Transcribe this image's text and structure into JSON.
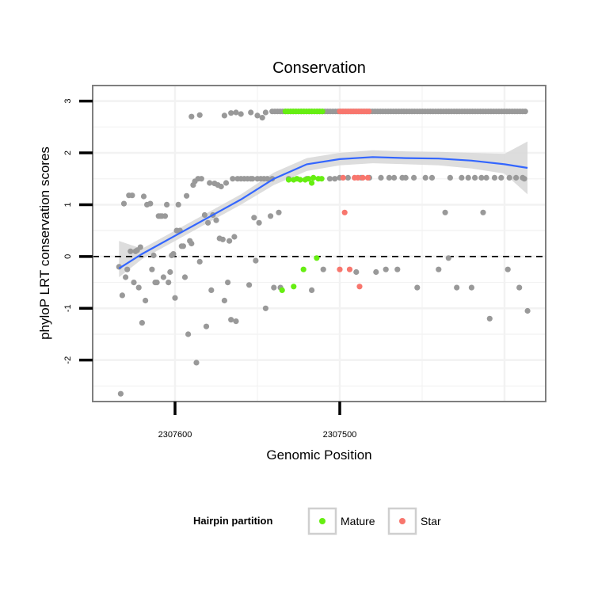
{
  "chart_data": {
    "type": "scatter",
    "title": "Conservation",
    "xlabel": "Genomic Position",
    "ylabel": "phyloP LRT conservation scores",
    "x_axis_reversed": true,
    "xlim": [
      2307650,
      2307375
    ],
    "ylim": [
      -2.8,
      3.3
    ],
    "x_ticks": [
      2307600,
      2307500
    ],
    "x_tick_labels": [
      "2307600",
      "2307500"
    ],
    "y_ticks": [
      -2,
      -1,
      0,
      1,
      2,
      3
    ],
    "y_tick_labels": [
      "-2",
      "-1",
      "0",
      "1",
      "2",
      "3"
    ],
    "grid": true,
    "reference_line": {
      "y": 0,
      "style": "dashed"
    },
    "smooth": {
      "method": "loess",
      "color": "#3366FF",
      "x": [
        2307634,
        2307620,
        2307600,
        2307580,
        2307560,
        2307540,
        2307520,
        2307500,
        2307480,
        2307460,
        2307440,
        2307420,
        2307400,
        2307386
      ],
      "y": [
        -0.23,
        0.05,
        0.4,
        0.75,
        1.1,
        1.5,
        1.78,
        1.88,
        1.92,
        1.9,
        1.89,
        1.85,
        1.78,
        1.71
      ],
      "ci_lower": [
        -0.4,
        -0.05,
        0.3,
        0.65,
        1.0,
        1.38,
        1.65,
        1.76,
        1.8,
        1.78,
        1.76,
        1.7,
        1.6,
        1.2
      ],
      "ci_upper": [
        0.3,
        0.15,
        0.5,
        0.85,
        1.2,
        1.62,
        1.9,
        2.0,
        2.05,
        2.03,
        2.02,
        2.0,
        1.98,
        2.22
      ]
    },
    "series": [
      {
        "name": "",
        "color": "#999999",
        "points": [
          [
            2307634,
            -0.2
          ],
          [
            2307633,
            -2.65
          ],
          [
            2307632,
            -0.75
          ],
          [
            2307631,
            1.02
          ],
          [
            2307630,
            -0.4
          ],
          [
            2307629,
            -0.25
          ],
          [
            2307628,
            1.18
          ],
          [
            2307627,
            0.1
          ],
          [
            2307626,
            1.18
          ],
          [
            2307625,
            -0.5
          ],
          [
            2307624,
            0.1
          ],
          [
            2307623,
            0.12
          ],
          [
            2307622,
            -0.6
          ],
          [
            2307621,
            0.18
          ],
          [
            2307620,
            -1.28
          ],
          [
            2307619,
            1.16
          ],
          [
            2307618,
            -0.85
          ],
          [
            2307617,
            1.0
          ],
          [
            2307615,
            1.02
          ],
          [
            2307614,
            -0.25
          ],
          [
            2307613,
            0.02
          ],
          [
            2307612,
            -0.5
          ],
          [
            2307611,
            -0.5
          ],
          [
            2307610,
            0.78
          ],
          [
            2307609,
            0.78
          ],
          [
            2307608,
            0.78
          ],
          [
            2307607,
            -0.4
          ],
          [
            2307606,
            0.78
          ],
          [
            2307605,
            1.0
          ],
          [
            2307604,
            -0.5
          ],
          [
            2307603,
            -0.3
          ],
          [
            2307602,
            0.02
          ],
          [
            2307601,
            0.05
          ],
          [
            2307600,
            -0.8
          ],
          [
            2307599,
            0.5
          ],
          [
            2307598,
            1.0
          ],
          [
            2307597,
            0.5
          ],
          [
            2307596,
            0.2
          ],
          [
            2307595,
            0.2
          ],
          [
            2307594,
            -0.4
          ],
          [
            2307593,
            1.17
          ],
          [
            2307592,
            -1.5
          ],
          [
            2307591,
            0.3
          ],
          [
            2307590,
            0.25
          ],
          [
            2307589,
            1.38
          ],
          [
            2307588,
            1.45
          ],
          [
            2307587,
            -2.05
          ],
          [
            2307586,
            1.5
          ],
          [
            2307585,
            -0.1
          ],
          [
            2307584,
            1.5
          ],
          [
            2307582,
            0.8
          ],
          [
            2307581,
            -1.35
          ],
          [
            2307580,
            0.65
          ],
          [
            2307579,
            1.42
          ],
          [
            2307578,
            -0.65
          ],
          [
            2307577,
            0.8
          ],
          [
            2307576,
            1.41
          ],
          [
            2307575,
            0.7
          ],
          [
            2307574,
            1.38
          ],
          [
            2307573,
            0.35
          ],
          [
            2307572,
            1.35
          ],
          [
            2307571,
            0.33
          ],
          [
            2307570,
            -0.85
          ],
          [
            2307569,
            1.42
          ],
          [
            2307568,
            -0.5
          ],
          [
            2307567,
            0.3
          ],
          [
            2307566,
            -1.22
          ],
          [
            2307565,
            1.5
          ],
          [
            2307564,
            0.38
          ],
          [
            2307563,
            -1.25
          ],
          [
            2307562,
            1.5
          ],
          [
            2307560,
            1.5
          ],
          [
            2307558,
            1.5
          ],
          [
            2307556,
            1.5
          ],
          [
            2307555,
            -0.55
          ],
          [
            2307554,
            1.5
          ],
          [
            2307553,
            1.5
          ],
          [
            2307552,
            0.75
          ],
          [
            2307551,
            -0.08
          ],
          [
            2307550,
            1.5
          ],
          [
            2307549,
            0.65
          ],
          [
            2307548,
            1.5
          ],
          [
            2307546,
            1.5
          ],
          [
            2307545,
            -1.0
          ],
          [
            2307544,
            1.5
          ],
          [
            2307542,
            0.78
          ],
          [
            2307541,
            1.5
          ],
          [
            2307540,
            -0.6
          ],
          [
            2307537,
            0.85
          ],
          [
            2307536,
            -0.6
          ],
          [
            2307531,
            1.5
          ],
          [
            2307520,
            1.5
          ],
          [
            2307517,
            -0.65
          ],
          [
            2307510,
            -0.25
          ],
          [
            2307506,
            1.5
          ],
          [
            2307503,
            1.5
          ],
          [
            2307500,
            1.52
          ],
          [
            2307495,
            1.52
          ],
          [
            2307490,
            -0.3
          ],
          [
            2307487,
            1.52
          ],
          [
            2307482,
            1.52
          ],
          [
            2307478,
            -0.3
          ],
          [
            2307475,
            1.52
          ],
          [
            2307472,
            -0.25
          ],
          [
            2307470,
            1.52
          ],
          [
            2307467,
            1.52
          ],
          [
            2307465,
            -0.25
          ],
          [
            2307462,
            1.52
          ],
          [
            2307460,
            1.52
          ],
          [
            2307455,
            1.52
          ],
          [
            2307453,
            -0.6
          ],
          [
            2307448,
            1.52
          ],
          [
            2307444,
            1.52
          ],
          [
            2307440,
            -0.25
          ],
          [
            2307436,
            0.85
          ],
          [
            2307434,
            -0.03
          ],
          [
            2307433,
            1.52
          ],
          [
            2307429,
            -0.6
          ],
          [
            2307426,
            1.52
          ],
          [
            2307422,
            1.52
          ],
          [
            2307420,
            -0.6
          ],
          [
            2307418,
            1.52
          ],
          [
            2307414,
            1.52
          ],
          [
            2307413,
            0.85
          ],
          [
            2307411,
            1.52
          ],
          [
            2307409,
            -1.2
          ],
          [
            2307406,
            1.52
          ],
          [
            2307402,
            1.52
          ],
          [
            2307398,
            -0.25
          ],
          [
            2307397,
            1.52
          ],
          [
            2307393,
            1.52
          ],
          [
            2307391,
            -0.6
          ],
          [
            2307388,
            1.5
          ],
          [
            2307386,
            -1.05
          ],
          [
            2307389,
            1.52
          ]
        ],
        "top_row": {
          "y": 2.8,
          "x_from": 2307541,
          "x_to": 2307386,
          "spacing": 1.6
        },
        "extra_top": [
          [
            2307590,
            2.7
          ],
          [
            2307585,
            2.73
          ],
          [
            2307570,
            2.72
          ],
          [
            2307566,
            2.77
          ],
          [
            2307563,
            2.78
          ],
          [
            2307560,
            2.75
          ],
          [
            2307554,
            2.78
          ],
          [
            2307550,
            2.72
          ],
          [
            2307547,
            2.68
          ],
          [
            2307545,
            2.78
          ]
        ]
      },
      {
        "name": "Mature",
        "color": "#66EE11",
        "points": [
          [
            2307535,
            -0.65
          ],
          [
            2307528,
            -0.58
          ],
          [
            2307531,
            1.48
          ],
          [
            2307528,
            1.48
          ],
          [
            2307526,
            1.5
          ],
          [
            2307524,
            1.48
          ],
          [
            2307522,
            -0.25
          ],
          [
            2307521,
            1.48
          ],
          [
            2307519,
            1.5
          ],
          [
            2307517,
            1.42
          ],
          [
            2307516,
            1.52
          ],
          [
            2307514,
            -0.03
          ],
          [
            2307513,
            1.5
          ],
          [
            2307511,
            1.5
          ]
        ],
        "top_row": {
          "y": 2.8,
          "x_from": 2307533,
          "x_to": 2307510,
          "spacing": 1.6
        }
      },
      {
        "name": "Star",
        "color": "#F8766D",
        "points": [
          [
            2307500,
            -0.25
          ],
          [
            2307498,
            1.52
          ],
          [
            2307497,
            0.85
          ],
          [
            2307494,
            -0.25
          ],
          [
            2307491,
            1.52
          ],
          [
            2307489,
            1.52
          ],
          [
            2307488,
            -0.58
          ],
          [
            2307486,
            1.52
          ],
          [
            2307483,
            1.52
          ]
        ],
        "top_row": {
          "y": 2.8,
          "x_from": 2307500,
          "x_to": 2307482,
          "spacing": 1.6
        }
      }
    ],
    "legend": {
      "title": "Hairpin partition",
      "position": "bottom",
      "entries": [
        {
          "label": "Mature",
          "color": "#66EE11"
        },
        {
          "label": "Star",
          "color": "#F8766D"
        }
      ]
    },
    "colors": {
      "point_default": "#999999",
      "smooth_line": "#3366FF",
      "ribbon": "#D9D9D9",
      "panel_border": "#7F7F7F",
      "grid": "#F2F2F2"
    }
  }
}
